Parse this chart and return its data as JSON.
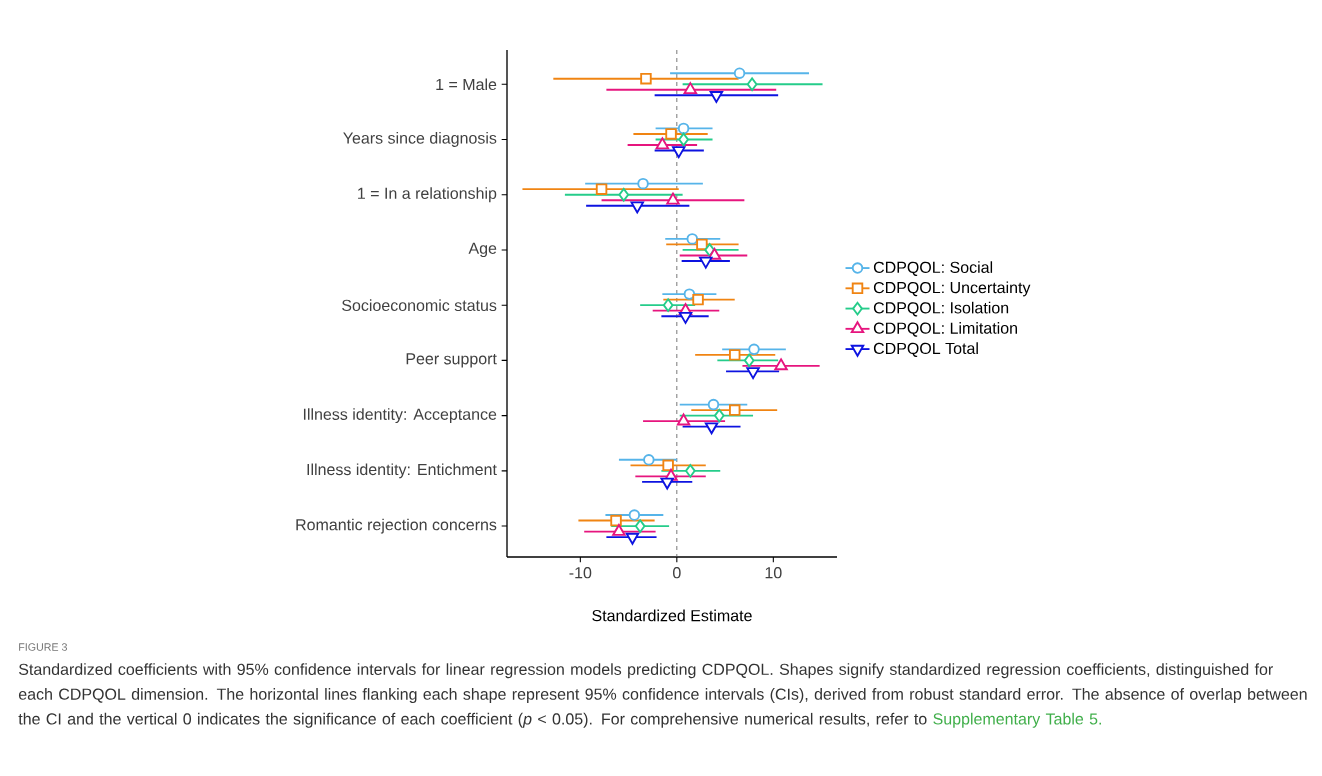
{
  "chart_data": {
    "type": "scatter",
    "orientation": "horizontal",
    "categories": [
      "1 = Male",
      "Years since diagnosis",
      "1 = In a relationship",
      "Age",
      "Socioeconomic status",
      "Peer support",
      "Illness identity: Acceptance",
      "Illness identity: Entichment",
      "Romantic rejection concerns"
    ],
    "series": [
      {
        "name": "CDPQOL: Social",
        "color": "#56b4e9",
        "marker": "circle",
        "values": [
          6.5,
          0.7,
          -3.5,
          1.6,
          1.3,
          8.0,
          3.8,
          -2.9,
          -4.4
        ],
        "errors": [
          [
            -0.7,
            13.7
          ],
          [
            -2.2,
            3.7
          ],
          [
            -9.5,
            2.7
          ],
          [
            -1.2,
            4.5
          ],
          [
            -1.5,
            4.1
          ],
          [
            4.7,
            11.3
          ],
          [
            0.3,
            7.3
          ],
          [
            -6.0,
            0.0
          ],
          [
            -7.4,
            -1.4
          ]
        ]
      },
      {
        "name": "CDPQOL: Uncertainty",
        "color": "#f08412",
        "marker": "square",
        "values": [
          -3.2,
          -0.6,
          -7.8,
          2.6,
          2.2,
          6.0,
          6.0,
          -0.9,
          -6.3
        ],
        "errors": [
          [
            -12.8,
            6.4
          ],
          [
            -4.5,
            3.2
          ],
          [
            -16.0,
            0.2
          ],
          [
            -1.1,
            6.4
          ],
          [
            -1.4,
            6.0
          ],
          [
            1.9,
            10.2
          ],
          [
            1.5,
            10.4
          ],
          [
            -4.8,
            3.0
          ],
          [
            -10.2,
            -2.3
          ]
        ]
      },
      {
        "name": "CDPQOL: Isolation",
        "color": "#25cc8a",
        "marker": "diamond",
        "values": [
          7.8,
          0.7,
          -5.5,
          3.4,
          -0.9,
          7.5,
          4.4,
          1.4,
          -3.8
        ],
        "errors": [
          [
            0.6,
            15.1
          ],
          [
            -2.2,
            3.7
          ],
          [
            -11.6,
            0.6
          ],
          [
            0.6,
            6.4
          ],
          [
            -3.8,
            1.9
          ],
          [
            4.2,
            10.5
          ],
          [
            0.3,
            7.9
          ],
          [
            -1.6,
            4.5
          ],
          [
            -6.8,
            -0.8
          ]
        ]
      },
      {
        "name": "CDPQOL: Limitation",
        "color": "#e6157e",
        "marker": "triangle",
        "values": [
          1.4,
          -1.5,
          -0.4,
          3.9,
          0.9,
          10.8,
          0.7,
          -0.6,
          -6.0
        ],
        "errors": [
          [
            -7.3,
            10.3
          ],
          [
            -5.1,
            2.1
          ],
          [
            -7.8,
            7.0
          ],
          [
            0.3,
            7.3
          ],
          [
            -2.5,
            4.4
          ],
          [
            6.8,
            14.8
          ],
          [
            -3.5,
            5.0
          ],
          [
            -4.3,
            3.0
          ],
          [
            -9.6,
            -2.2
          ]
        ]
      },
      {
        "name": "CDPQOL Total",
        "color": "#0d13e0",
        "marker": "triangle down",
        "values": [
          4.1,
          0.2,
          -4.1,
          3.0,
          0.9,
          7.9,
          3.6,
          -1.0,
          -4.6
        ],
        "errors": [
          [
            -2.3,
            10.5
          ],
          [
            -2.3,
            2.8
          ],
          [
            -9.4,
            1.3
          ],
          [
            0.5,
            5.5
          ],
          [
            -1.6,
            3.3
          ],
          [
            5.1,
            10.6
          ],
          [
            0.6,
            6.6
          ],
          [
            -3.6,
            1.6
          ],
          [
            -7.3,
            -2.1
          ]
        ]
      }
    ],
    "xlim": [
      -17.6,
      16.6
    ],
    "xticks": [
      -10,
      0,
      10
    ],
    "xlabel": "Standardized Estimate",
    "grid": false,
    "legend": "right",
    "ref_lines": [
      {
        "axis": "x",
        "value": 0,
        "line_style": "dashed",
        "color": "#555555"
      }
    ],
    "annotations": [
      "FIGURE 3",
      "Standardized coefficients with 95% confidence intervals for linear regression models predicting CDPQOL. Shapes signify standardized regression coefficients, distinguished for each CDPQOL dimension. The horizontal lines flanking each shape represent 95% confidence intervals (CIs), derived from robust standard error. The absence of overlap between the CI and the vertical 0 indicates the significance of each coefficient (*p* < 0.05). For comprehensive numerical results, refer to",
      "Supplementary Table 5."
    ]
  }
}
